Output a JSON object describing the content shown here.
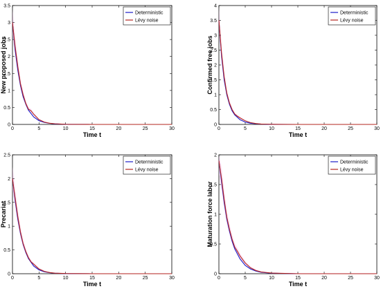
{
  "figure": {
    "xlabel": "Time t",
    "legend_entries": [
      "Deterministic",
      "Lévy noise"
    ],
    "colors": {
      "deterministic": "#1a1ac8",
      "levy": "#b3261e",
      "noise_band": "#f0a8e8",
      "axis": "#000000"
    }
  },
  "chart_data": [
    {
      "type": "line",
      "title": "",
      "xlabel": "Time t",
      "ylabel": "New proposed jobs",
      "xlim": [
        0,
        30
      ],
      "ylim": [
        0,
        3.5
      ],
      "xticks": [
        "0",
        "5",
        "10",
        "15",
        "20",
        "25",
        "30"
      ],
      "yticks": [
        "0",
        "0.5",
        "1",
        "1.5",
        "2",
        "2.5",
        "3",
        "3.5"
      ],
      "legend": "top-right",
      "series": [
        {
          "name": "Deterministic",
          "x": [
            0,
            0.5,
            1,
            1.5,
            2,
            2.5,
            3,
            4,
            5,
            6,
            7,
            8,
            10,
            15,
            20,
            30
          ],
          "values": [
            3.0,
            2.2,
            1.6,
            1.15,
            0.82,
            0.6,
            0.42,
            0.22,
            0.11,
            0.06,
            0.03,
            0.015,
            0.005,
            0.0,
            0.0,
            0.0
          ]
        },
        {
          "name": "Lévy noise",
          "x": [
            0,
            0.5,
            1,
            1.5,
            2,
            2.5,
            3,
            3.5,
            4,
            5,
            6,
            7,
            8,
            10,
            15,
            20,
            30
          ],
          "values": [
            3.0,
            2.3,
            1.7,
            1.2,
            0.88,
            0.62,
            0.45,
            0.4,
            0.3,
            0.14,
            0.07,
            0.035,
            0.02,
            0.005,
            0.0,
            0.0,
            0.0
          ]
        }
      ]
    },
    {
      "type": "line",
      "title": "",
      "xlabel": "Time t",
      "ylabel": "Confirmed free jobs",
      "xlim": [
        0,
        30
      ],
      "ylim": [
        0,
        4
      ],
      "xticks": [
        "0",
        "5",
        "10",
        "15",
        "20",
        "25",
        "30"
      ],
      "yticks": [
        "0",
        "0.5",
        "1",
        "1.5",
        "2",
        "2.5",
        "3",
        "3.5",
        "4"
      ],
      "legend": "top-right",
      "series": [
        {
          "name": "Deterministic",
          "x": [
            0,
            0.5,
            1,
            1.5,
            2,
            2.5,
            3,
            4,
            5,
            6,
            7,
            8,
            10,
            15,
            20,
            30
          ],
          "values": [
            3.5,
            2.3,
            1.5,
            1.0,
            0.68,
            0.46,
            0.32,
            0.16,
            0.08,
            0.04,
            0.02,
            0.01,
            0.003,
            0.0,
            0.0,
            0.0
          ]
        },
        {
          "name": "Lévy noise",
          "x": [
            0,
            0.5,
            1,
            1.5,
            2,
            2.5,
            3,
            3.5,
            4,
            5,
            6,
            7,
            8,
            10,
            15,
            20,
            30
          ],
          "values": [
            3.5,
            2.4,
            1.6,
            1.05,
            0.72,
            0.5,
            0.35,
            0.28,
            0.22,
            0.12,
            0.06,
            0.03,
            0.015,
            0.004,
            0.0,
            0.0,
            0.0
          ]
        }
      ]
    },
    {
      "type": "line",
      "title": "",
      "xlabel": "Time t",
      "ylabel": "Precariat",
      "xlim": [
        0,
        30
      ],
      "ylim": [
        0,
        2.5
      ],
      "xticks": [
        "0",
        "5",
        "10",
        "15",
        "20",
        "25",
        "30"
      ],
      "yticks": [
        "0",
        "0.5",
        "1",
        "1.5",
        "2",
        "2.5"
      ],
      "legend": "top-right",
      "series": [
        {
          "name": "Deterministic",
          "x": [
            0,
            0.5,
            1,
            1.5,
            2,
            2.5,
            3,
            4,
            5,
            6,
            7,
            8,
            10,
            15,
            20,
            30
          ],
          "values": [
            2.0,
            1.55,
            1.15,
            0.85,
            0.62,
            0.45,
            0.32,
            0.16,
            0.08,
            0.04,
            0.02,
            0.01,
            0.003,
            0.0,
            0.0,
            0.0
          ]
        },
        {
          "name": "Lévy noise",
          "x": [
            0,
            0.5,
            1,
            1.5,
            2,
            2.5,
            3,
            3.5,
            4,
            5,
            6,
            7,
            8,
            10,
            15,
            20,
            30
          ],
          "values": [
            2.0,
            1.6,
            1.2,
            0.88,
            0.64,
            0.47,
            0.34,
            0.25,
            0.2,
            0.1,
            0.05,
            0.025,
            0.012,
            0.004,
            0.0,
            0.0,
            0.0
          ]
        }
      ]
    },
    {
      "type": "line",
      "title": "",
      "xlabel": "Time t",
      "ylabel": "Maturation force labor",
      "xlim": [
        0,
        30
      ],
      "ylim": [
        0,
        2
      ],
      "xticks": [
        "0",
        "5",
        "10",
        "15",
        "20",
        "25",
        "30"
      ],
      "yticks": [
        "0",
        "0.5",
        "1",
        "1.5",
        "2"
      ],
      "legend": "top-right",
      "series": [
        {
          "name": "Deterministic",
          "x": [
            0,
            0.5,
            1,
            1.5,
            2,
            2.5,
            3,
            4,
            5,
            6,
            7,
            8,
            10,
            15,
            20,
            30
          ],
          "values": [
            1.9,
            1.55,
            1.2,
            0.92,
            0.72,
            0.55,
            0.42,
            0.25,
            0.14,
            0.08,
            0.045,
            0.025,
            0.008,
            0.0,
            0.0,
            0.0
          ]
        },
        {
          "name": "Lévy noise",
          "x": [
            0,
            0.5,
            1,
            1.5,
            2,
            2.5,
            3,
            3.5,
            4,
            5,
            6,
            7,
            8,
            10,
            15,
            20,
            30
          ],
          "values": [
            1.9,
            1.6,
            1.25,
            0.95,
            0.75,
            0.58,
            0.45,
            0.38,
            0.3,
            0.18,
            0.1,
            0.055,
            0.03,
            0.01,
            0.0,
            0.0,
            0.0
          ]
        }
      ]
    }
  ]
}
